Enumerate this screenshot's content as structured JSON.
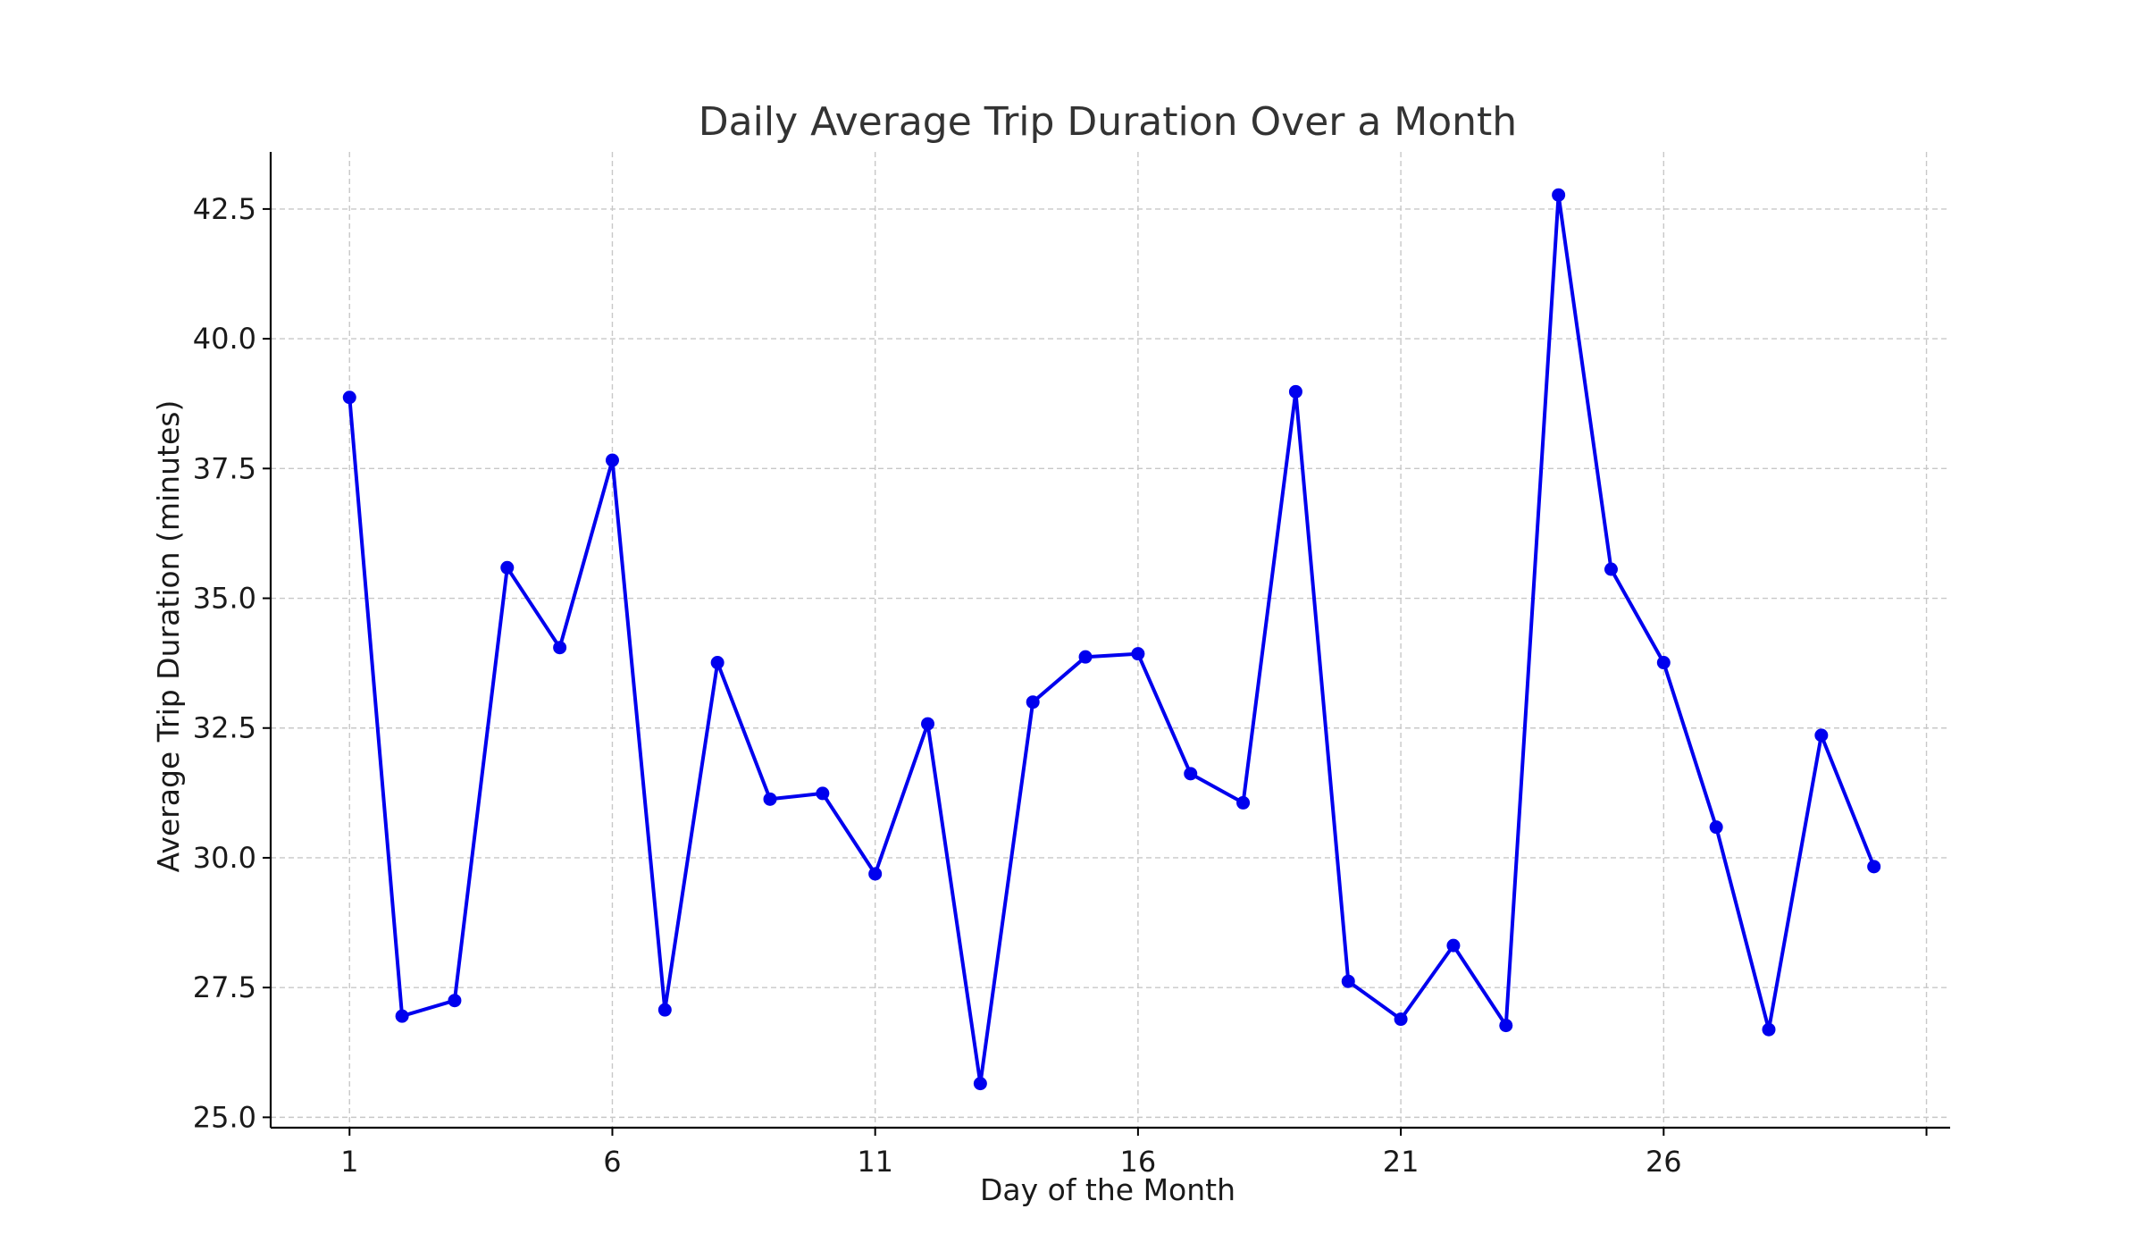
{
  "chart_data": {
    "type": "line",
    "title": "Daily Average Trip Duration Over a Month",
    "xlabel": "Day of the Month",
    "ylabel": "Average Trip Duration (minutes)",
    "xlim": [
      -0.5,
      31.45
    ],
    "ylim": [
      24.8,
      43.6
    ],
    "xticks": [
      1,
      6,
      11,
      16,
      21,
      26,
      31
    ],
    "xtick_labels": [
      "1",
      "6",
      "11",
      "16",
      "21",
      "26",
      ""
    ],
    "yticks": [
      25.0,
      27.5,
      30.0,
      32.5,
      35.0,
      37.5,
      40.0,
      42.5
    ],
    "ytick_labels": [
      "25.0",
      "27.5",
      "30.0",
      "32.5",
      "35.0",
      "37.5",
      "40.0",
      "42.5"
    ],
    "grid": true,
    "color": "#0000ee",
    "marker": "circle",
    "series": [
      {
        "x": [
          1,
          2,
          3,
          4,
          5,
          6,
          7,
          8,
          9,
          10,
          11,
          12,
          13,
          14,
          15,
          16,
          17,
          18,
          19,
          20,
          21,
          22,
          23,
          24,
          25,
          26,
          27,
          28,
          29,
          30
        ],
        "values": [
          38.87,
          26.95,
          27.25,
          35.59,
          34.05,
          37.66,
          27.07,
          33.76,
          31.13,
          31.24,
          29.69,
          32.58,
          25.65,
          33.0,
          33.87,
          33.93,
          31.62,
          31.06,
          38.98,
          27.62,
          26.89,
          28.31,
          26.77,
          42.77,
          35.56,
          33.76,
          30.59,
          26.69,
          32.36,
          29.83
        ]
      }
    ]
  }
}
